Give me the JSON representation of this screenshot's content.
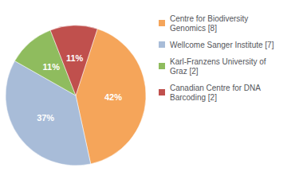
{
  "chart_data": {
    "type": "pie",
    "categories": [
      "Centre for Biodiversity\nGenomics [8]",
      "Wellcome Sanger Institute [7]",
      "Karl-Franzens University of\nGraz [2]",
      "Canadian Centre for DNA\nBarcoding [2]"
    ],
    "values": [
      42,
      37,
      11,
      11
    ],
    "value_labels": [
      "42%",
      "37%",
      "11%",
      "11%"
    ],
    "colors": [
      "#f5a55a",
      "#a8bcd8",
      "#8fbc5e",
      "#c0504d"
    ],
    "data_labels": true,
    "legend": "right"
  }
}
